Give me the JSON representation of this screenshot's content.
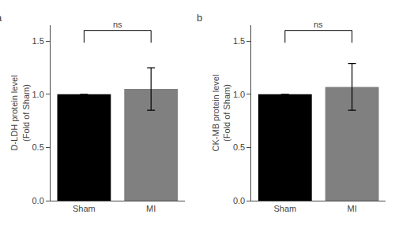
{
  "chart_data": [
    {
      "type": "bar",
      "title": "a",
      "categories": [
        "Sham",
        "MI"
      ],
      "values": [
        1.0,
        1.05
      ],
      "errors": [
        0.0,
        0.2
      ],
      "colors": [
        "#000000",
        "#808080"
      ],
      "ylabel": "D-LDH protein level\n(Fold of Sham)",
      "ylim": [
        0.0,
        1.65
      ],
      "yticks": [
        {
          "value": 0.0,
          "label": "0.0"
        },
        0.5,
        {
          "value": 1.0,
          "label": "1.0"
        },
        1.5
      ],
      "annotations": [
        "ns"
      ],
      "grid": false
    },
    {
      "type": "bar",
      "title": "b",
      "categories": [
        "Sham",
        "MI"
      ],
      "values": [
        1.0,
        1.07
      ],
      "errors": [
        0.0,
        0.22
      ],
      "colors": [
        "#000000",
        "#808080"
      ],
      "ylabel": "CK-MB protein level\n(Fold of Sham)",
      "ylim": [
        0.0,
        1.65
      ],
      "yticks": [
        {
          "value": 0.0,
          "label": "0.0"
        },
        0.5,
        {
          "value": 1.0,
          "label": "1.0"
        },
        1.5
      ],
      "annotations": [
        "ns"
      ],
      "grid": false
    }
  ]
}
